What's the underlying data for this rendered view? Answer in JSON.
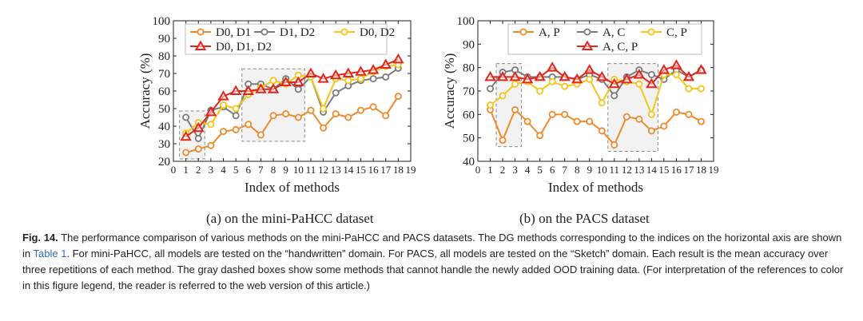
{
  "chart_data": [
    {
      "type": "line",
      "panel": "(a)",
      "subcaption": "(a)  on the mini-PaHCC dataset",
      "xlabel": "Index of methods",
      "ylabel": "Accuracy (%)",
      "xlim": [
        0,
        19
      ],
      "ylim": [
        20,
        100
      ],
      "xticks": [
        0,
        1,
        2,
        3,
        4,
        5,
        6,
        7,
        8,
        9,
        10,
        11,
        12,
        13,
        14,
        15,
        16,
        17,
        18,
        19
      ],
      "yticks": [
        20,
        30,
        40,
        50,
        60,
        70,
        80,
        90,
        100
      ],
      "x": [
        1,
        2,
        3,
        4,
        5,
        6,
        7,
        8,
        9,
        10,
        11,
        12,
        13,
        14,
        15,
        16,
        17,
        18
      ],
      "series": [
        {
          "name": "D0, D1",
          "color": "#ef8a2c",
          "marker": "circle",
          "values": [
            25,
            27,
            29,
            37,
            38,
            41,
            35,
            46,
            47,
            45,
            49,
            39,
            47,
            45,
            49,
            51,
            46,
            57
          ]
        },
        {
          "name": "D1, D2",
          "color": "#7b7b7b",
          "marker": "circle",
          "values": [
            45,
            33,
            49,
            51,
            46,
            64,
            64,
            61,
            67,
            61,
            68,
            48,
            59,
            63,
            66,
            67,
            68,
            73
          ]
        },
        {
          "name": "D0, D2",
          "color": "#f5c518",
          "marker": "circle",
          "values": [
            36,
            42,
            41,
            52,
            50,
            58,
            62,
            66,
            64,
            69,
            68,
            50,
            67,
            66,
            67,
            71,
            74,
            75
          ]
        },
        {
          "name": "D0, D1, D2",
          "color": "#e1261c",
          "marker": "triangle",
          "values": [
            34,
            39,
            48,
            57,
            60,
            60,
            61,
            61,
            65,
            65,
            70,
            67,
            69,
            70,
            71,
            72,
            75,
            78
          ]
        }
      ],
      "dashed_boxes_x": [
        [
          1,
          2
        ],
        [
          6,
          10
        ]
      ],
      "legend_position": "top-left"
    },
    {
      "type": "line",
      "panel": "(b)",
      "subcaption": "(b)  on the PACS dataset",
      "xlabel": "Index of methods",
      "ylabel": "Accuracy (%)",
      "xlim": [
        0,
        19
      ],
      "ylim": [
        40,
        100
      ],
      "xticks": [
        0,
        1,
        2,
        3,
        4,
        5,
        6,
        7,
        8,
        9,
        10,
        11,
        12,
        13,
        14,
        15,
        16,
        17,
        18,
        19
      ],
      "yticks": [
        40,
        50,
        60,
        70,
        80,
        90,
        100
      ],
      "x": [
        1,
        2,
        3,
        4,
        5,
        6,
        7,
        8,
        9,
        10,
        11,
        12,
        13,
        14,
        15,
        16,
        17,
        18
      ],
      "series": [
        {
          "name": "A, P",
          "color": "#ef8a2c",
          "marker": "circle",
          "values": [
            62,
            49,
            62,
            57,
            51,
            60,
            60,
            57,
            57,
            53,
            47,
            59,
            58,
            53,
            55,
            61,
            60,
            57
          ]
        },
        {
          "name": "A, C",
          "color": "#7b7b7b",
          "marker": "circle",
          "values": [
            71,
            78,
            79,
            76,
            76,
            76,
            76,
            75,
            77,
            75,
            68,
            76,
            79,
            77,
            75,
            79,
            76,
            79
          ]
        },
        {
          "name": "C, P",
          "color": "#f5c518",
          "marker": "circle",
          "values": [
            64,
            68,
            73,
            74,
            70,
            74,
            72,
            73,
            75,
            65,
            75,
            74,
            73,
            60,
            77,
            77,
            71,
            71
          ]
        },
        {
          "name": "A, C, P",
          "color": "#e1261c",
          "marker": "triangle",
          "values": [
            76,
            76,
            76,
            75,
            76,
            80,
            76,
            75,
            79,
            76,
            73,
            75,
            77,
            73,
            79,
            81,
            76,
            79
          ]
        }
      ],
      "dashed_boxes_x": [
        [
          2,
          3
        ],
        [
          11,
          14
        ]
      ],
      "legend_position": "top-center"
    }
  ],
  "caption": {
    "label": "Fig. 14.",
    "line1_text": "The performance comparison of various methods on the mini-PaHCC and PACS datasets. The DG methods corresponding to the indices on the horizontal axis are shown",
    "line2_pre": "in",
    "line2_link": "Table 1",
    "line2_post": ". For mini-PaHCC, all models are tested on the “handwritten” domain. For PACS, all models are tested on the “Sketch” domain. Each result is the mean accuracy over",
    "line3": "three repetitions of each method. The gray dashed boxes show some methods that cannot handle the newly added OOD training data. (For interpretation of the references to color",
    "line4": "in this figure legend, the reader is referred to the web version of this article.)"
  }
}
